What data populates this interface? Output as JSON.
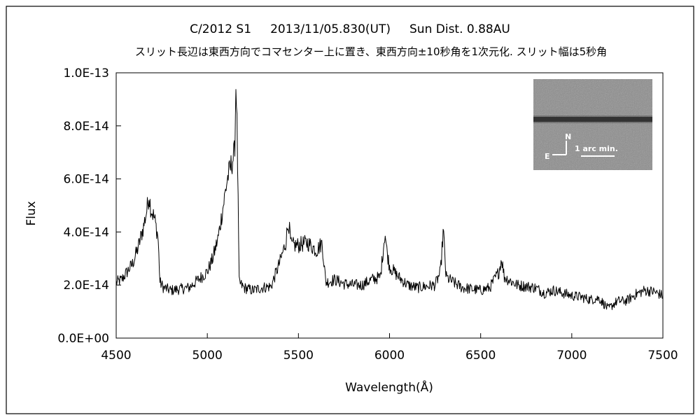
{
  "chart_data": {
    "type": "line",
    "title": "C/2012 S1     2013/11/05.830(UT)     Sun Dist. 0.88AU",
    "subtitle": "スリット長辺は東西方向でコマセンター上に置き、東西方向±10秒角を1次元化. スリット幅は5秒角",
    "xlabel": "Wavelength(Å)",
    "ylabel": "Flux",
    "xlim": [
      4500,
      7500
    ],
    "ylim": [
      0,
      1e-13
    ],
    "x_ticks": [
      "4500",
      "5000",
      "5500",
      "6000",
      "6500",
      "7000",
      "7500"
    ],
    "y_ticks": [
      "0.0E+00",
      "2.0E-14",
      "4.0E-14",
      "6.0E-14",
      "8.0E-14",
      "1.0E-13"
    ],
    "grid": false,
    "legend": "none",
    "series": [
      {
        "color": "#000000",
        "x": [
          4500,
          4530,
          4560,
          4590,
          4620,
          4650,
          4670,
          4680,
          4690,
          4710,
          4730,
          4740,
          4760,
          4800,
          4850,
          4900,
          4950,
          5000,
          5030,
          5060,
          5090,
          5110,
          5130,
          5150,
          5158,
          5163,
          5175,
          5200,
          5250,
          5300,
          5350,
          5400,
          5430,
          5445,
          5460,
          5500,
          5550,
          5600,
          5630,
          5650,
          5700,
          5750,
          5800,
          5850,
          5900,
          5950,
          5975,
          5985,
          6000,
          6050,
          6100,
          6150,
          6200,
          6250,
          6280,
          6295,
          6310,
          6350,
          6400,
          6500,
          6550,
          6600,
          6615,
          6630,
          6700,
          6800,
          6850,
          6900,
          6950,
          7000,
          7050,
          7100,
          7150,
          7200,
          7250,
          7300,
          7350,
          7400,
          7450,
          7500
        ],
        "y": [
          2.1e-14,
          2.2e-14,
          2.5e-14,
          2.8e-14,
          3.4e-14,
          4.2e-14,
          4.9e-14,
          5.4e-14,
          4.9e-14,
          4.5e-14,
          3.8e-14,
          2.1e-14,
          1.9e-14,
          1.8e-14,
          1.85e-14,
          1.9e-14,
          2.2e-14,
          2.5e-14,
          3e-14,
          3.8e-14,
          5.1e-14,
          6e-14,
          6.5e-14,
          7e-14,
          9.9e-14,
          8e-14,
          2.1e-14,
          1.9e-14,
          1.8e-14,
          1.9e-14,
          1.95e-14,
          2.9e-14,
          3.6e-14,
          4.4e-14,
          3.5e-14,
          3.5e-14,
          3.6e-14,
          3.3e-14,
          3.6e-14,
          2.1e-14,
          2.2e-14,
          2.05e-14,
          2e-14,
          2e-14,
          2.2e-14,
          2.3e-14,
          4e-14,
          3.3e-14,
          2.7e-14,
          2.3e-14,
          2e-14,
          1.9e-14,
          1.95e-14,
          2e-14,
          2.5e-14,
          4.1e-14,
          2.3e-14,
          2.1e-14,
          1.9e-14,
          1.8e-14,
          1.9e-14,
          2.5e-14,
          3e-14,
          2.3e-14,
          2e-14,
          1.9e-14,
          1.7e-14,
          1.8e-14,
          1.7e-14,
          1.6e-14,
          1.55e-14,
          1.45e-14,
          1.5e-14,
          1.1e-14,
          1.4e-14,
          1.4e-14,
          1.65e-14,
          1.8e-14,
          1.75e-14,
          1.6e-14
        ]
      }
    ],
    "inset": {
      "compass_north": "N",
      "compass_east": "E",
      "scale_label": "1 arc min."
    }
  }
}
